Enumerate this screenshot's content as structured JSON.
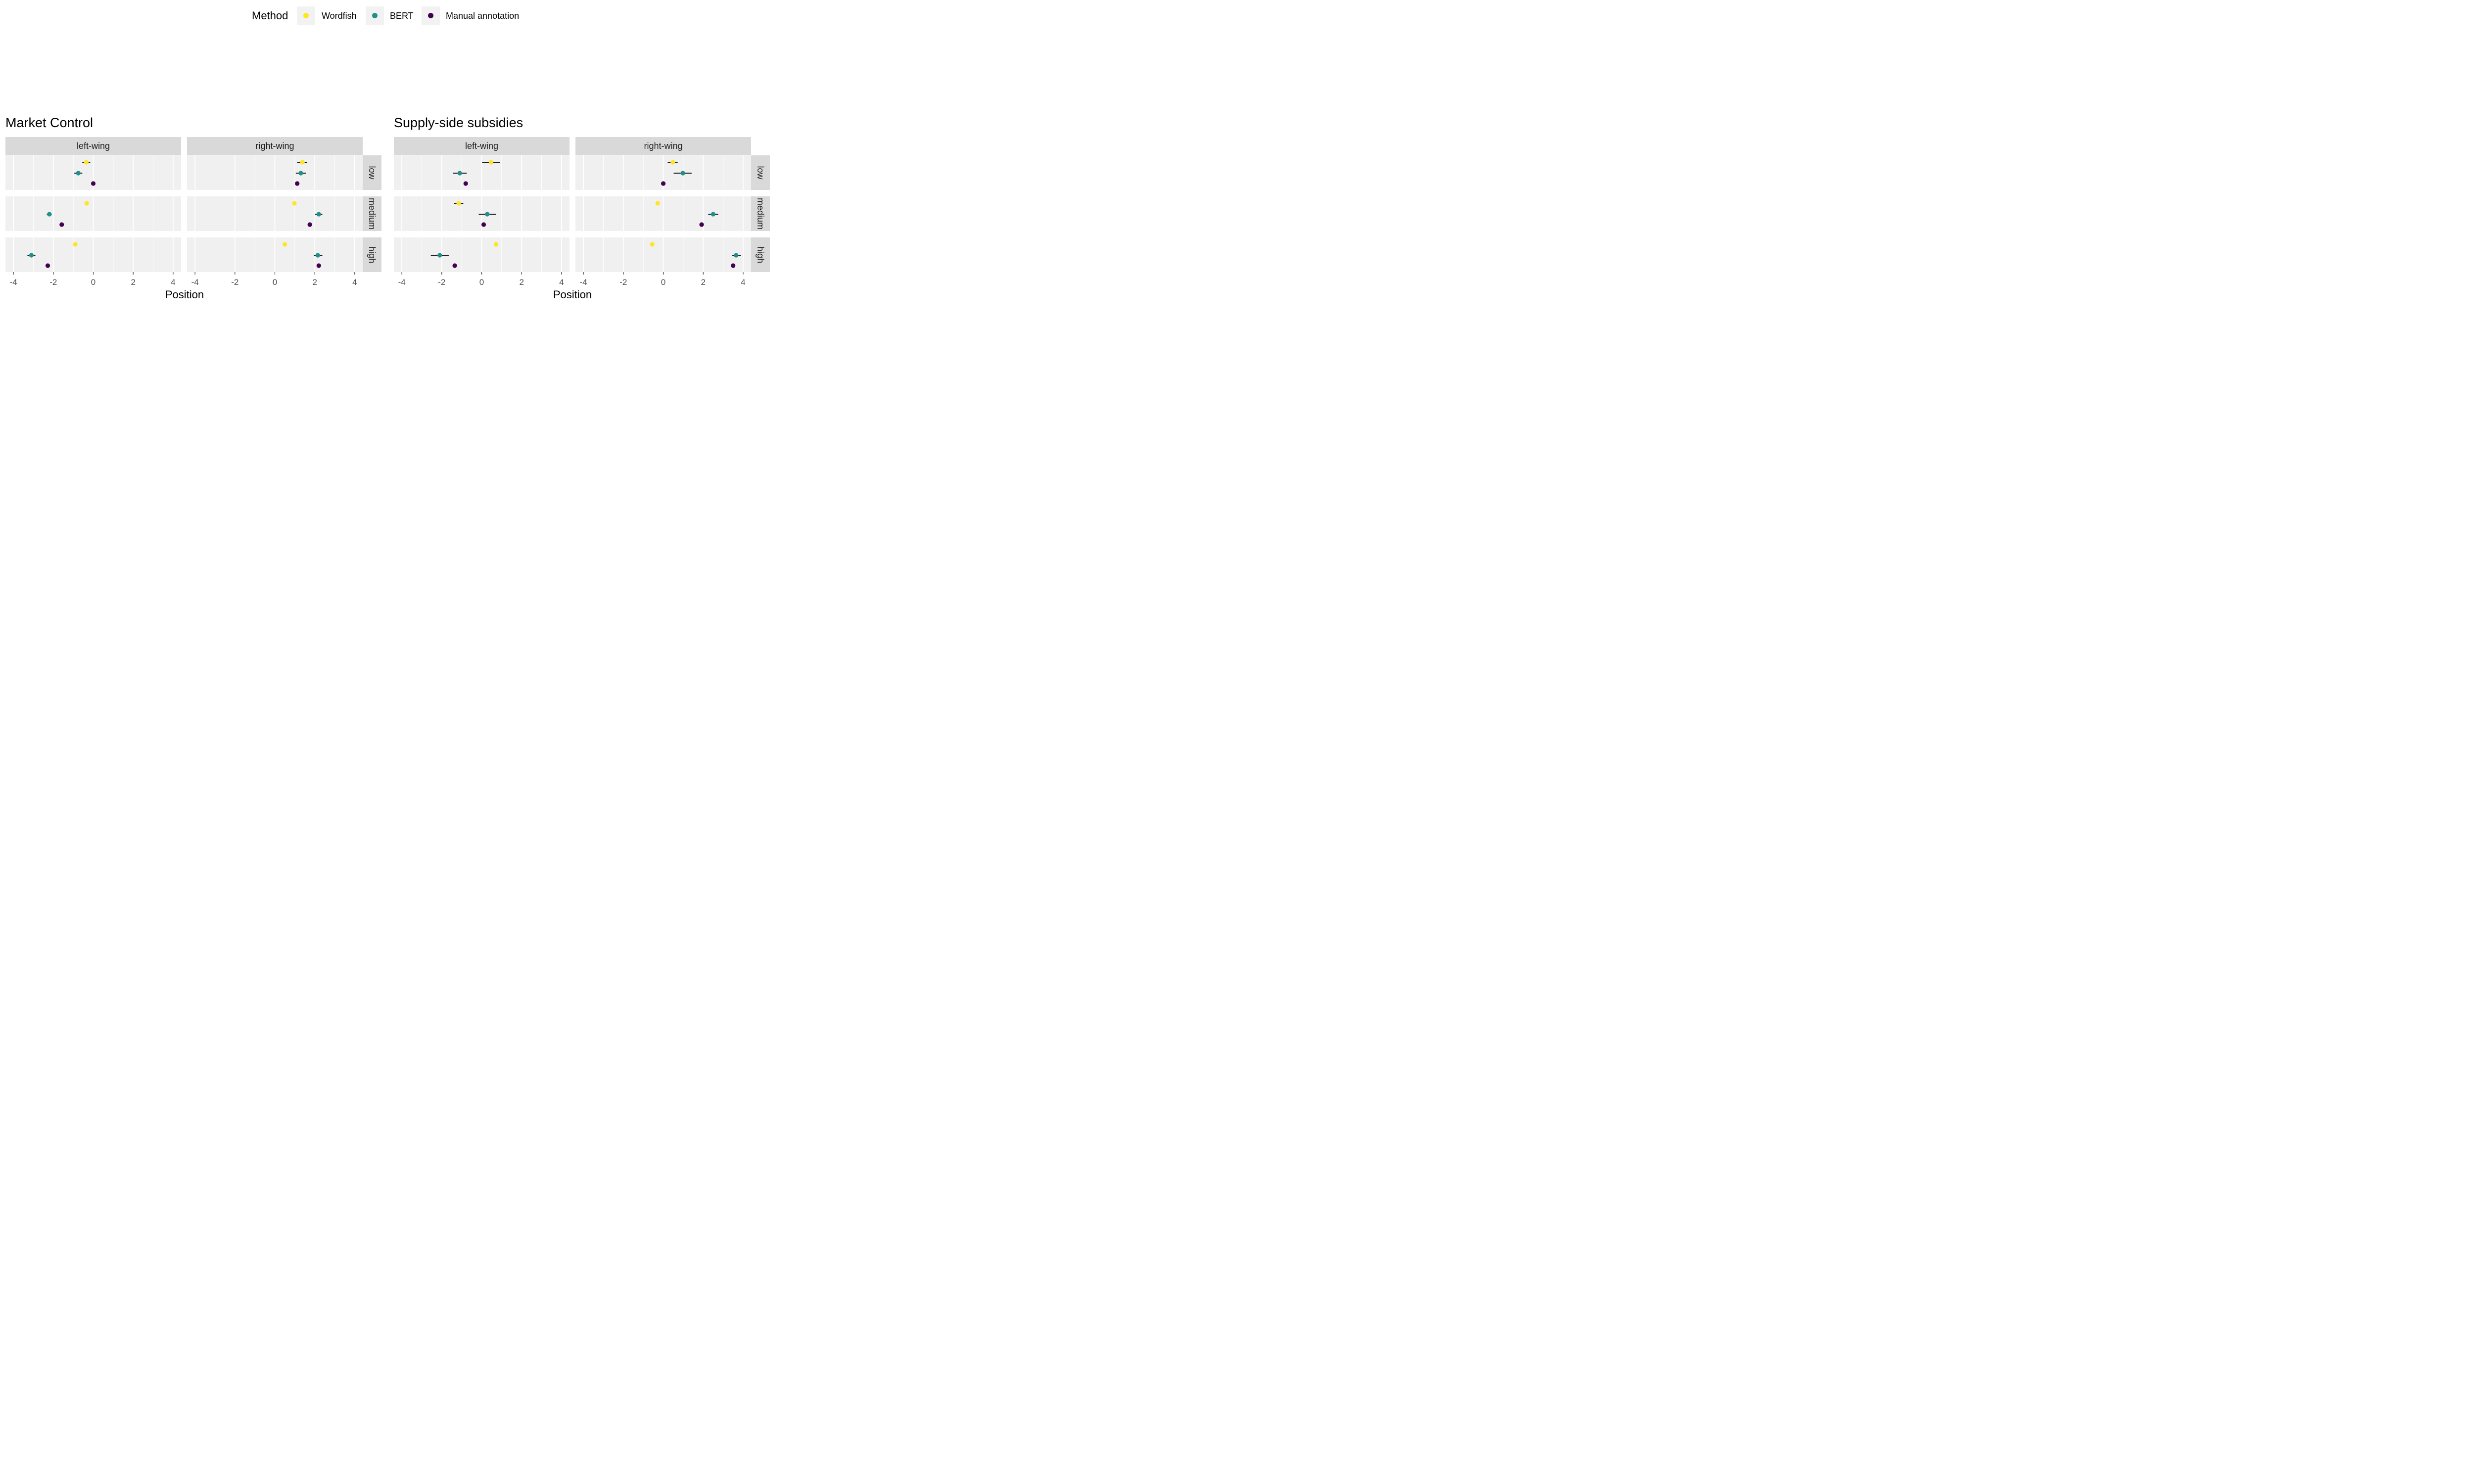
{
  "legend": {
    "title": "Method",
    "items": [
      {
        "label": "Wordfish",
        "color": "#FDE725"
      },
      {
        "label": "BERT",
        "color": "#21908C"
      },
      {
        "label": "Manual annotation",
        "color": "#440154"
      }
    ]
  },
  "chart_data": [
    {
      "type": "scatter",
      "title": "Market Control",
      "xlabel": "Position",
      "xlim": [
        -4.4,
        4.4
      ],
      "xticks": [
        -4,
        -2,
        0,
        2,
        4
      ],
      "column_facets": [
        "left-wing",
        "right-wing"
      ],
      "row_facets": [
        "low",
        "medium",
        "high"
      ],
      "series": [
        "Wordfish",
        "BERT",
        "Manual annotation"
      ],
      "panels": [
        {
          "column": "left-wing",
          "row": "low",
          "points": [
            {
              "method": "Wordfish",
              "x": -0.35,
              "lo": -0.55,
              "hi": -0.15
            },
            {
              "method": "BERT",
              "x": -0.75,
              "lo": -0.95,
              "hi": -0.55
            },
            {
              "method": "Manual annotation",
              "x": 0.0,
              "lo": null,
              "hi": null
            }
          ]
        },
        {
          "column": "left-wing",
          "row": "medium",
          "points": [
            {
              "method": "Wordfish",
              "x": -0.33,
              "lo": null,
              "hi": null
            },
            {
              "method": "BERT",
              "x": -2.2,
              "lo": -2.33,
              "hi": -2.08
            },
            {
              "method": "Manual annotation",
              "x": -1.58,
              "lo": null,
              "hi": null
            }
          ]
        },
        {
          "column": "left-wing",
          "row": "high",
          "points": [
            {
              "method": "Wordfish",
              "x": -0.9,
              "lo": null,
              "hi": null
            },
            {
              "method": "BERT",
              "x": -3.1,
              "lo": -3.3,
              "hi": -2.9
            },
            {
              "method": "Manual annotation",
              "x": -2.28,
              "lo": null,
              "hi": null
            }
          ]
        },
        {
          "column": "right-wing",
          "row": "low",
          "points": [
            {
              "method": "Wordfish",
              "x": 1.38,
              "lo": 1.12,
              "hi": 1.62
            },
            {
              "method": "BERT",
              "x": 1.3,
              "lo": 1.05,
              "hi": 1.55
            },
            {
              "method": "Manual annotation",
              "x": 1.12,
              "lo": null,
              "hi": null
            }
          ]
        },
        {
          "column": "right-wing",
          "row": "medium",
          "points": [
            {
              "method": "Wordfish",
              "x": 0.98,
              "lo": null,
              "hi": null
            },
            {
              "method": "BERT",
              "x": 2.2,
              "lo": 2.02,
              "hi": 2.38
            },
            {
              "method": "Manual annotation",
              "x": 1.75,
              "lo": null,
              "hi": null
            }
          ]
        },
        {
          "column": "right-wing",
          "row": "high",
          "points": [
            {
              "method": "Wordfish",
              "x": 0.5,
              "lo": null,
              "hi": null
            },
            {
              "method": "BERT",
              "x": 2.15,
              "lo": 1.95,
              "hi": 2.38
            },
            {
              "method": "Manual annotation",
              "x": 2.2,
              "lo": null,
              "hi": null
            }
          ]
        }
      ]
    },
    {
      "type": "scatter",
      "title": "Supply-side subsidies",
      "xlabel": "Position",
      "xlim": [
        -4.4,
        4.4
      ],
      "xticks": [
        -4,
        -2,
        0,
        2,
        4
      ],
      "column_facets": [
        "left-wing",
        "right-wing"
      ],
      "row_facets": [
        "low",
        "medium",
        "high"
      ],
      "series": [
        "Wordfish",
        "BERT",
        "Manual annotation"
      ],
      "panels": [
        {
          "column": "left-wing",
          "row": "low",
          "points": [
            {
              "method": "Wordfish",
              "x": 0.47,
              "lo": 0.02,
              "hi": 0.92
            },
            {
              "method": "BERT",
              "x": -1.1,
              "lo": -1.45,
              "hi": -0.75
            },
            {
              "method": "Manual annotation",
              "x": -0.8,
              "lo": null,
              "hi": null
            }
          ]
        },
        {
          "column": "left-wing",
          "row": "medium",
          "points": [
            {
              "method": "Wordfish",
              "x": -1.15,
              "lo": -1.38,
              "hi": -0.92
            },
            {
              "method": "BERT",
              "x": 0.28,
              "lo": -0.15,
              "hi": 0.72
            },
            {
              "method": "Manual annotation",
              "x": 0.1,
              "lo": null,
              "hi": null
            }
          ]
        },
        {
          "column": "left-wing",
          "row": "high",
          "points": [
            {
              "method": "Wordfish",
              "x": 0.72,
              "lo": null,
              "hi": null
            },
            {
              "method": "BERT",
              "x": -2.1,
              "lo": -2.55,
              "hi": -1.65
            },
            {
              "method": "Manual annotation",
              "x": -1.35,
              "lo": null,
              "hi": null
            }
          ]
        },
        {
          "column": "right-wing",
          "row": "low",
          "points": [
            {
              "method": "Wordfish",
              "x": 0.48,
              "lo": 0.22,
              "hi": 0.72
            },
            {
              "method": "BERT",
              "x": 0.98,
              "lo": 0.52,
              "hi": 1.42
            },
            {
              "method": "Manual annotation",
              "x": 0.0,
              "lo": null,
              "hi": null
            }
          ]
        },
        {
          "column": "right-wing",
          "row": "medium",
          "points": [
            {
              "method": "Wordfish",
              "x": -0.28,
              "lo": null,
              "hi": null
            },
            {
              "method": "BERT",
              "x": 2.5,
              "lo": 2.25,
              "hi": 2.75
            },
            {
              "method": "Manual annotation",
              "x": 1.92,
              "lo": null,
              "hi": null
            }
          ]
        },
        {
          "column": "right-wing",
          "row": "high",
          "points": [
            {
              "method": "Wordfish",
              "x": -0.55,
              "lo": null,
              "hi": null
            },
            {
              "method": "BERT",
              "x": 3.65,
              "lo": 3.45,
              "hi": 3.88
            },
            {
              "method": "Manual annotation",
              "x": 3.5,
              "lo": null,
              "hi": null
            }
          ]
        }
      ]
    }
  ]
}
